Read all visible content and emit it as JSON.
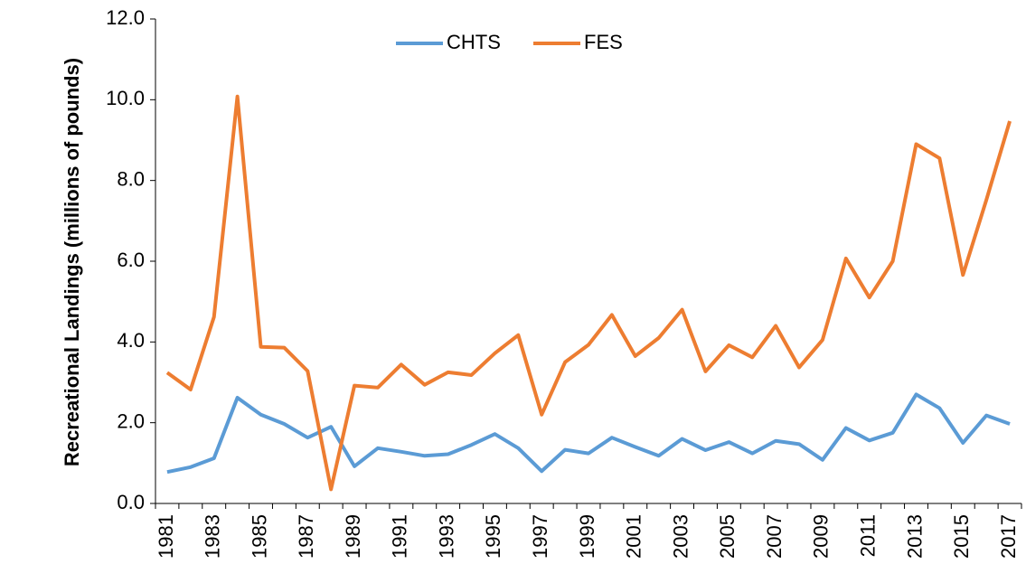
{
  "chart_data": {
    "type": "line",
    "y_label": "Recreational Landings (millions of pounds)",
    "categories": [
      "1981",
      null,
      "1983",
      null,
      "1985",
      null,
      "1987",
      null,
      "1989",
      null,
      "1991",
      null,
      "1993",
      null,
      "1995",
      null,
      "1997",
      null,
      "1999",
      null,
      "2001",
      null,
      "2003",
      null,
      "2005",
      null,
      "2007",
      null,
      "2009",
      null,
      "2011",
      null,
      "2013",
      null,
      "2015",
      null,
      "2017"
    ],
    "series": [
      {
        "name": "CHTS",
        "color": "#5b9bd5",
        "values": [
          0.78,
          0.9,
          1.12,
          2.62,
          2.2,
          1.97,
          1.63,
          1.9,
          0.92,
          1.37,
          1.28,
          1.18,
          1.22,
          1.45,
          1.72,
          1.37,
          0.8,
          1.33,
          1.24,
          1.63,
          1.4,
          1.18,
          1.6,
          1.32,
          1.52,
          1.24,
          1.55,
          1.47,
          1.08,
          1.87,
          1.56,
          1.75,
          2.7,
          2.36,
          1.5,
          2.18,
          1.97
        ]
      },
      {
        "name": "FES",
        "color": "#ed7d31",
        "values": [
          3.24,
          2.82,
          4.62,
          10.08,
          3.88,
          3.86,
          3.28,
          0.35,
          2.92,
          2.87,
          3.44,
          2.94,
          3.25,
          3.18,
          3.72,
          4.17,
          2.2,
          3.5,
          3.93,
          4.67,
          3.65,
          4.1,
          4.8,
          3.27,
          3.92,
          3.62,
          4.4,
          3.37,
          4.05,
          6.07,
          5.1,
          6.0,
          8.9,
          8.55,
          5.66,
          7.52,
          9.47
        ]
      }
    ],
    "ylim": [
      0,
      12
    ],
    "yticks": [
      {
        "value": 0,
        "label": "0.0"
      },
      {
        "value": 2,
        "label": "2.0"
      },
      {
        "value": 4,
        "label": "4.0"
      },
      {
        "value": 6,
        "label": "6.0"
      },
      {
        "value": 8,
        "label": "8.0"
      },
      {
        "value": 10,
        "label": "10.0"
      },
      {
        "value": 12,
        "label": "12.0"
      }
    ],
    "legend": "top"
  }
}
